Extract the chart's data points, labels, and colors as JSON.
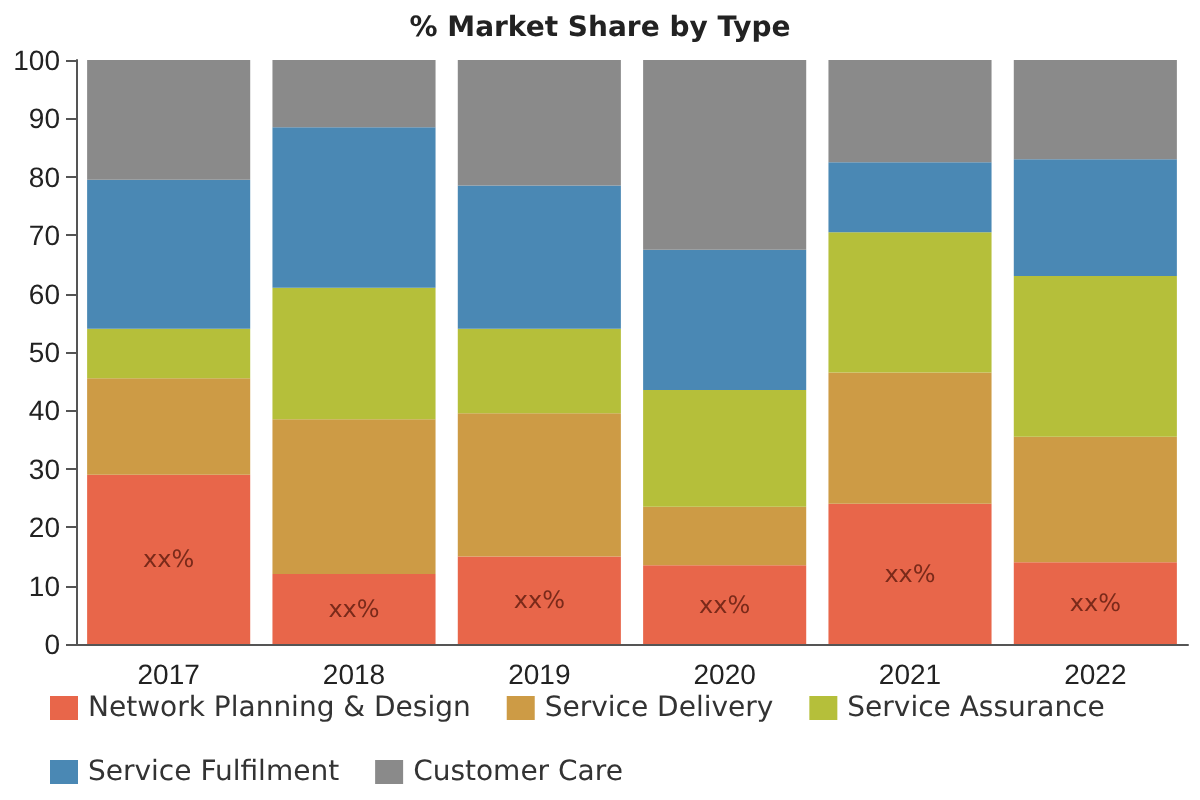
{
  "chart_data": {
    "type": "bar",
    "stacked": true,
    "title": "% Market Share by Type",
    "categories": [
      "2017",
      "2018",
      "2019",
      "2020",
      "2021",
      "2022"
    ],
    "series": [
      {
        "name": "Network Planning & Design",
        "color": "#e8664a",
        "values": [
          29,
          12,
          15,
          13.5,
          24,
          14
        ],
        "value_labels": [
          "xx%",
          "xx%",
          "xx%",
          "xx%",
          "xx%",
          "xx%"
        ]
      },
      {
        "name": "Service Delivery",
        "color": "#cd9b45",
        "values": [
          16.5,
          26.5,
          24.5,
          10,
          22.5,
          21.5
        ]
      },
      {
        "name": "Service Assurance",
        "color": "#b5bf3a",
        "values": [
          8.5,
          22.5,
          14.5,
          20,
          24,
          27.5
        ]
      },
      {
        "name": "Service Fulfilment",
        "color": "#4a88b4",
        "values": [
          25.5,
          27.5,
          24.5,
          24,
          12,
          20
        ]
      },
      {
        "name": "Customer Care",
        "color": "#8a8a8a",
        "values": [
          20.5,
          11.5,
          21.5,
          32.5,
          17.5,
          17
        ]
      }
    ],
    "ylim": [
      0,
      100
    ],
    "yticks": [
      0,
      10,
      20,
      30,
      40,
      50,
      60,
      70,
      80,
      90,
      100
    ],
    "grid": false,
    "legend": "bottom"
  }
}
